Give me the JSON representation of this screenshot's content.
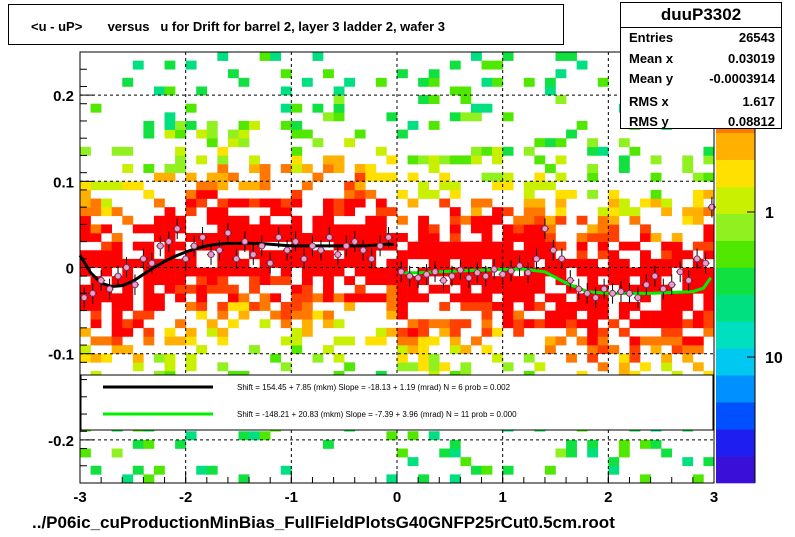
{
  "title": "<u - uP>       versus   u for Drift for barrel 2, layer 3 ladder 2, wafer 3",
  "stats": {
    "name": "duuP3302",
    "rows": [
      {
        "label": "Entries",
        "value": "26543"
      },
      {
        "label": "Mean x",
        "value": "0.03019"
      },
      {
        "label": "Mean y",
        "value": "-0.0003914"
      },
      {
        "label": "RMS x",
        "value": "1.617"
      },
      {
        "label": "RMS y",
        "value": "0.08812"
      }
    ]
  },
  "bottom_title": "../P06ic_cuProductionMinBias_FullFieldPlotsG40GNFP25rCut0.5cm.root",
  "colors": {
    "black_fit": "#000000",
    "green_fit": "#00ee00",
    "marker": "#e8a0c8",
    "palette": [
      "#3a10d8",
      "#1e1ef0",
      "#0050ff",
      "#0090ff",
      "#00c8f0",
      "#00e0c0",
      "#00e080",
      "#10e040",
      "#50e800",
      "#90f020",
      "#c8f000",
      "#ffe000",
      "#ffb000",
      "#ff7800",
      "#ff4000",
      "#ff0000"
    ]
  },
  "chart_data": {
    "type": "heatmap",
    "title": "<u - uP>       versus   u for Drift for barrel 2, layer 3 ladder 2, wafer 3",
    "xlim": [
      -3,
      3
    ],
    "ylim": [
      -0.25,
      0.25
    ],
    "x_ticks": [
      "-3",
      "-2",
      "-1",
      "0",
      "1",
      "2",
      "3"
    ],
    "y_ticks": [
      "0.2",
      "0.1",
      "0",
      "-0.1",
      "-0.2"
    ],
    "colorbar_ticks": [
      "1",
      "10"
    ],
    "colorbar_scale": "log",
    "grid": true,
    "fits": [
      {
        "label": "Shift =   154.45 + 7.85 (mkm) Slope =   -18.13 + 1.19 (mrad)  N = 6 prob = 0.002",
        "color": "black",
        "x": [
          -3.0,
          -2.9,
          -2.8,
          -2.7,
          -2.6,
          -2.5,
          -2.4,
          -2.3,
          -2.2,
          -2.1,
          -2.0,
          -1.9,
          -1.8,
          -1.7,
          -1.6,
          -1.5,
          -1.4,
          -1.3,
          -1.2,
          -1.1,
          -1.0,
          -0.9,
          -0.8,
          -0.7,
          -0.6,
          -0.5,
          -0.4,
          -0.3,
          -0.2,
          -0.1,
          -0.03
        ],
        "y": [
          0.014,
          -0.006,
          -0.018,
          -0.022,
          -0.021,
          -0.016,
          -0.008,
          0.0,
          0.007,
          0.013,
          0.018,
          0.022,
          0.025,
          0.027,
          0.028,
          0.028,
          0.028,
          0.028,
          0.027,
          0.026,
          0.025,
          0.025,
          0.025,
          0.025,
          0.025,
          0.025,
          0.025,
          0.025,
          0.026,
          0.027,
          0.027
        ]
      },
      {
        "label": "Shift =  -148.21 + 20.83 (mkm) Slope =    -7.39 + 3.96 (mrad)  N = 11 prob = 0.000",
        "color": "green",
        "x": [
          0.02,
          0.2,
          0.4,
          0.6,
          0.8,
          1.0,
          1.2,
          1.4,
          1.6,
          1.8,
          2.0,
          2.2,
          2.4,
          2.6,
          2.8,
          2.9,
          2.97
        ],
        "y": [
          -0.006,
          -0.006,
          -0.005,
          -0.004,
          -0.003,
          -0.002,
          -0.002,
          -0.005,
          -0.018,
          -0.028,
          -0.03,
          -0.03,
          -0.03,
          -0.029,
          -0.028,
          -0.024,
          -0.012
        ]
      }
    ],
    "profile_points": {
      "x": [
        -2.96,
        -2.88,
        -2.8,
        -2.72,
        -2.64,
        -2.56,
        -2.48,
        -2.4,
        -2.32,
        -2.24,
        -2.16,
        -2.08,
        -2.0,
        -1.92,
        -1.84,
        -1.76,
        -1.68,
        -1.6,
        -1.52,
        -1.44,
        -1.36,
        -1.28,
        -1.2,
        -1.12,
        -1.04,
        -0.96,
        -0.88,
        -0.8,
        -0.72,
        -0.64,
        -0.56,
        -0.48,
        -0.4,
        -0.32,
        -0.24,
        -0.16,
        -0.08,
        0.04,
        0.12,
        0.2,
        0.28,
        0.36,
        0.44,
        0.52,
        0.6,
        0.68,
        0.76,
        0.84,
        0.92,
        1.0,
        1.08,
        1.16,
        1.24,
        1.32,
        1.4,
        1.48,
        1.56,
        1.64,
        1.72,
        1.8,
        1.88,
        1.96,
        2.04,
        2.12,
        2.2,
        2.28,
        2.36,
        2.44,
        2.52,
        2.6,
        2.68,
        2.76,
        2.84,
        2.92,
        2.98
      ],
      "y": [
        -0.035,
        -0.03,
        -0.015,
        -0.025,
        -0.01,
        0.0,
        -0.02,
        0.01,
        0.005,
        0.025,
        0.03,
        0.045,
        0.01,
        0.025,
        0.035,
        0.015,
        0.02,
        0.04,
        0.01,
        0.03,
        0.015,
        0.025,
        0.005,
        0.035,
        0.02,
        0.03,
        0.01,
        0.025,
        0.02,
        0.035,
        0.015,
        0.025,
        0.03,
        0.02,
        0.01,
        0.025,
        0.035,
        -0.005,
        -0.01,
        -0.012,
        -0.008,
        -0.005,
        -0.015,
        -0.01,
        -0.003,
        -0.012,
        -0.006,
        -0.01,
        -0.002,
        -0.008,
        -0.004,
        0.002,
        -0.006,
        0.01,
        0.045,
        0.02,
        0.01,
        -0.015,
        -0.025,
        -0.03,
        -0.035,
        -0.025,
        -0.03,
        -0.028,
        -0.03,
        -0.035,
        -0.02,
        -0.01,
        -0.025,
        -0.02,
        -0.005,
        -0.015,
        0.01,
        0.005,
        0.07
      ]
    }
  }
}
